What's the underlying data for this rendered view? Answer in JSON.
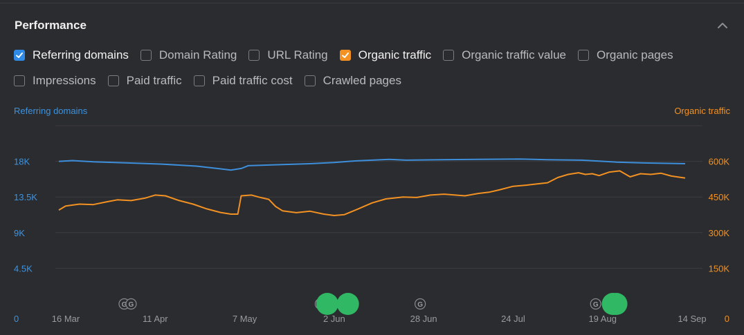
{
  "panel": {
    "title": "Performance",
    "collapse_icon": "chevron-up-icon"
  },
  "checkboxes": [
    {
      "label": "Referring domains",
      "checked": true,
      "color": "#2f8be6"
    },
    {
      "label": "Domain Rating",
      "checked": false
    },
    {
      "label": "URL Rating",
      "checked": false
    },
    {
      "label": "Organic traffic",
      "checked": true,
      "color": "#f39222"
    },
    {
      "label": "Organic traffic value",
      "checked": false
    },
    {
      "label": "Organic pages",
      "checked": false
    },
    {
      "label": "Impressions",
      "checked": false
    },
    {
      "label": "Paid traffic",
      "checked": false
    },
    {
      "label": "Paid traffic cost",
      "checked": false
    },
    {
      "label": "Crawled pages",
      "checked": false
    }
  ],
  "chart_data": {
    "type": "line",
    "legend": {
      "left": "Referring domains",
      "right": "Organic traffic"
    },
    "y_left": {
      "ticks": [
        "0",
        "4.5K",
        "9K",
        "13.5K",
        "18K"
      ],
      "range": [
        0,
        22500
      ],
      "color": "#3d93e0"
    },
    "y_right": {
      "ticks": [
        "0",
        "150K",
        "300K",
        "450K",
        "600K"
      ],
      "range": [
        0,
        750000
      ],
      "color": "#f39222"
    },
    "x_range": [
      "2023-03-16",
      "2023-09-14"
    ],
    "x_ticks": [
      {
        "label": "16 Mar",
        "date": "2023-03-16"
      },
      {
        "label": "11 Apr",
        "date": "2023-04-11"
      },
      {
        "label": "7 May",
        "date": "2023-05-07"
      },
      {
        "label": "2 Jun",
        "date": "2023-06-02"
      },
      {
        "label": "28 Jun",
        "date": "2023-06-28"
      },
      {
        "label": "24 Jul",
        "date": "2023-07-24"
      },
      {
        "label": "19 Aug",
        "date": "2023-08-19"
      },
      {
        "label": "14 Sep",
        "date": "2023-09-14"
      }
    ],
    "grid": true,
    "series": [
      {
        "name": "Referring domains",
        "axis": "left",
        "color": "#3d8fdc",
        "points": [
          [
            "2023-03-16",
            18000
          ],
          [
            "2023-03-20",
            18100
          ],
          [
            "2023-03-26",
            17950
          ],
          [
            "2023-04-05",
            17800
          ],
          [
            "2023-04-15",
            17650
          ],
          [
            "2023-04-25",
            17400
          ],
          [
            "2023-05-01",
            17100
          ],
          [
            "2023-05-05",
            16900
          ],
          [
            "2023-05-08",
            17100
          ],
          [
            "2023-05-10",
            17450
          ],
          [
            "2023-05-20",
            17600
          ],
          [
            "2023-05-28",
            17700
          ],
          [
            "2023-06-04",
            17850
          ],
          [
            "2023-06-10",
            18050
          ],
          [
            "2023-06-20",
            18250
          ],
          [
            "2023-06-25",
            18150
          ],
          [
            "2023-07-05",
            18200
          ],
          [
            "2023-07-15",
            18250
          ],
          [
            "2023-07-28",
            18300
          ],
          [
            "2023-08-05",
            18200
          ],
          [
            "2023-08-15",
            18150
          ],
          [
            "2023-08-25",
            17900
          ],
          [
            "2023-09-02",
            17800
          ],
          [
            "2023-09-14",
            17700
          ]
        ]
      },
      {
        "name": "Organic traffic",
        "axis": "right",
        "color": "#f39222",
        "points": [
          [
            "2023-03-16",
            395000
          ],
          [
            "2023-03-18",
            412000
          ],
          [
            "2023-03-22",
            420000
          ],
          [
            "2023-03-26",
            418000
          ],
          [
            "2023-03-30",
            430000
          ],
          [
            "2023-04-02",
            438000
          ],
          [
            "2023-04-06",
            435000
          ],
          [
            "2023-04-10",
            445000
          ],
          [
            "2023-04-13",
            458000
          ],
          [
            "2023-04-16",
            455000
          ],
          [
            "2023-04-20",
            435000
          ],
          [
            "2023-04-24",
            420000
          ],
          [
            "2023-04-28",
            400000
          ],
          [
            "2023-05-02",
            385000
          ],
          [
            "2023-05-05",
            378000
          ],
          [
            "2023-05-07",
            378000
          ],
          [
            "2023-05-08",
            455000
          ],
          [
            "2023-05-11",
            458000
          ],
          [
            "2023-05-13",
            450000
          ],
          [
            "2023-05-16",
            440000
          ],
          [
            "2023-05-18",
            410000
          ],
          [
            "2023-05-20",
            392000
          ],
          [
            "2023-05-24",
            384000
          ],
          [
            "2023-05-28",
            390000
          ],
          [
            "2023-06-01",
            378000
          ],
          [
            "2023-06-04",
            372000
          ],
          [
            "2023-06-07",
            376000
          ],
          [
            "2023-06-11",
            400000
          ],
          [
            "2023-06-15",
            425000
          ],
          [
            "2023-06-19",
            442000
          ],
          [
            "2023-06-24",
            450000
          ],
          [
            "2023-06-28",
            448000
          ],
          [
            "2023-07-02",
            458000
          ],
          [
            "2023-07-06",
            462000
          ],
          [
            "2023-07-12",
            455000
          ],
          [
            "2023-07-16",
            465000
          ],
          [
            "2023-07-19",
            470000
          ],
          [
            "2023-07-22",
            480000
          ],
          [
            "2023-07-26",
            495000
          ],
          [
            "2023-07-30",
            500000
          ],
          [
            "2023-08-02",
            505000
          ],
          [
            "2023-08-05",
            510000
          ],
          [
            "2023-08-08",
            532000
          ],
          [
            "2023-08-11",
            545000
          ],
          [
            "2023-08-14",
            552000
          ],
          [
            "2023-08-16",
            545000
          ],
          [
            "2023-08-18",
            548000
          ],
          [
            "2023-08-20",
            540000
          ],
          [
            "2023-08-23",
            555000
          ],
          [
            "2023-08-26",
            560000
          ],
          [
            "2023-08-29",
            535000
          ],
          [
            "2023-09-01",
            548000
          ],
          [
            "2023-09-04",
            545000
          ],
          [
            "2023-09-07",
            550000
          ],
          [
            "2023-09-10",
            538000
          ],
          [
            "2023-09-14",
            530000
          ]
        ]
      }
    ],
    "annotations": [
      {
        "type": "google-update",
        "date": "2023-04-04"
      },
      {
        "type": "google-update",
        "date": "2023-04-06"
      },
      {
        "type": "google-update",
        "date": "2023-05-31"
      },
      {
        "type": "site-event",
        "date": "2023-06-02"
      },
      {
        "type": "site-event",
        "date": "2023-06-08"
      },
      {
        "type": "google-update",
        "date": "2023-06-29"
      },
      {
        "type": "google-update",
        "date": "2023-08-19"
      },
      {
        "type": "site-event",
        "date": "2023-08-24"
      },
      {
        "type": "site-event",
        "date": "2023-08-25"
      }
    ]
  }
}
